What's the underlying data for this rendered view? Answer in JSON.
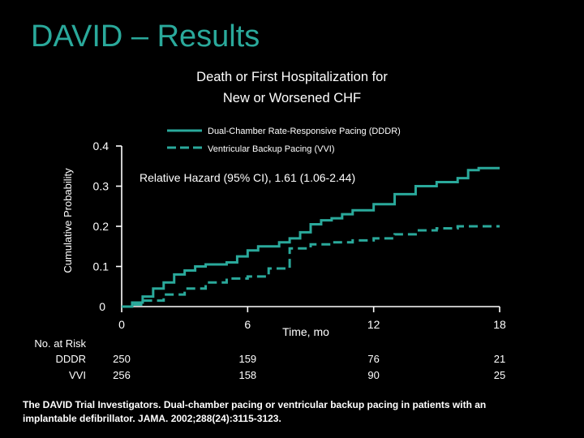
{
  "slide": {
    "title": "DAVID – Results",
    "chart_title_line1": "Death or First Hospitalization for",
    "chart_title_line2": "New or Worsened CHF",
    "citation": "The DAVID Trial Investigators. Dual-chamber pacing or ventricular backup pacing in patients with an implantable defibrillator. JAMA. 2002;288(24):3115-3123."
  },
  "chart_data": {
    "type": "line",
    "title": "Death or First Hospitalization for New or Worsened CHF",
    "xlabel": "Time, mo",
    "ylabel": "Cumulative Probability",
    "xlim": [
      0,
      18
    ],
    "ylim": [
      0,
      0.4
    ],
    "x_ticks": [
      "0",
      "6",
      "12",
      "18"
    ],
    "y_ticks": [
      "0",
      "0.1",
      "0.2",
      "0.3",
      "0.4"
    ],
    "annotation": "Relative Hazard (95% CI), 1.61 (1.06-2.44)",
    "legend_position": "top-right",
    "grid": false,
    "series": [
      {
        "name": "Dual-Chamber Rate-Responsive Pacing (DDDR)",
        "style": "solid",
        "color": "#2aa99b",
        "points": [
          [
            0,
            0
          ],
          [
            0.5,
            0.01
          ],
          [
            1,
            0.025
          ],
          [
            1.5,
            0.045
          ],
          [
            2,
            0.06
          ],
          [
            2.5,
            0.08
          ],
          [
            3,
            0.09
          ],
          [
            3.5,
            0.1
          ],
          [
            4,
            0.105
          ],
          [
            5,
            0.11
          ],
          [
            5.5,
            0.125
          ],
          [
            6,
            0.14
          ],
          [
            6.5,
            0.15
          ],
          [
            7.5,
            0.16
          ],
          [
            8,
            0.17
          ],
          [
            8.5,
            0.185
          ],
          [
            9,
            0.205
          ],
          [
            9.5,
            0.215
          ],
          [
            10,
            0.22
          ],
          [
            10.5,
            0.23
          ],
          [
            11,
            0.24
          ],
          [
            12,
            0.255
          ],
          [
            13,
            0.28
          ],
          [
            14,
            0.3
          ],
          [
            15,
            0.31
          ],
          [
            16,
            0.32
          ],
          [
            16.5,
            0.34
          ],
          [
            17,
            0.345
          ],
          [
            18,
            0.345
          ]
        ]
      },
      {
        "name": "Ventricular Backup Pacing (VVI)",
        "style": "dashed",
        "color": "#2aa99b",
        "points": [
          [
            0,
            0
          ],
          [
            0.5,
            0.005
          ],
          [
            1,
            0.015
          ],
          [
            2,
            0.03
          ],
          [
            3,
            0.045
          ],
          [
            4,
            0.06
          ],
          [
            5,
            0.07
          ],
          [
            6,
            0.075
          ],
          [
            7,
            0.095
          ],
          [
            8,
            0.145
          ],
          [
            9,
            0.155
          ],
          [
            10,
            0.16
          ],
          [
            11,
            0.165
          ],
          [
            12,
            0.17
          ],
          [
            13,
            0.18
          ],
          [
            14,
            0.19
          ],
          [
            15,
            0.195
          ],
          [
            16,
            0.2
          ],
          [
            18,
            0.2
          ]
        ]
      }
    ],
    "at_risk": {
      "label": "No. at Risk",
      "rows": [
        {
          "name": "DDDR",
          "values": [
            "250",
            "159",
            "76",
            "21"
          ]
        },
        {
          "name": "VVI",
          "values": [
            "256",
            "158",
            "90",
            "25"
          ]
        }
      ]
    }
  }
}
